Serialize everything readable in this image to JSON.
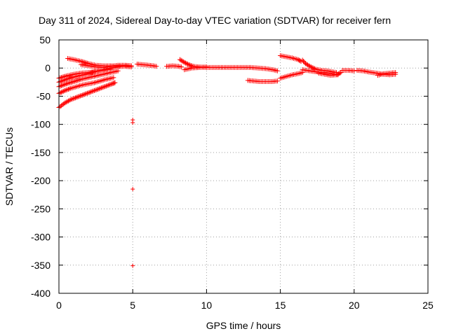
{
  "chart_data": {
    "type": "scatter",
    "title": "Day 311 of 2024, Sidereal Day-to-day VTEC variation (SDTVAR) for receiver fern",
    "xlabel": "GPS time / hours",
    "ylabel": "SDTVAR / TECUs",
    "xlim": [
      0,
      25
    ],
    "ylim": [
      -400,
      50
    ],
    "xticks": [
      0,
      5,
      10,
      15,
      20,
      25
    ],
    "yticks": [
      50,
      0,
      -50,
      -100,
      -150,
      -200,
      -250,
      -300,
      -350,
      -400
    ],
    "grid": true,
    "marker": "+",
    "color": "#ff0000",
    "series": [
      {
        "tracks": [
          [
            [
              0.0,
              -70
            ],
            [
              0.4,
              -62
            ],
            [
              0.8,
              -56
            ],
            [
              1.2,
              -52
            ],
            [
              1.6,
              -48
            ],
            [
              2.0,
              -44
            ],
            [
              2.4,
              -40
            ],
            [
              2.8,
              -36
            ],
            [
              3.2,
              -32
            ],
            [
              3.6,
              -28
            ],
            [
              3.8,
              -26
            ]
          ],
          [
            [
              0.0,
              -45
            ],
            [
              0.4,
              -40
            ],
            [
              0.8,
              -36
            ],
            [
              1.2,
              -33
            ],
            [
              1.6,
              -30
            ],
            [
              2.0,
              -28
            ],
            [
              2.4,
              -26
            ],
            [
              2.8,
              -23
            ],
            [
              3.2,
              -20
            ],
            [
              3.7,
              -17
            ]
          ],
          [
            [
              0.0,
              -33
            ],
            [
              0.5,
              -28
            ],
            [
              1.0,
              -24
            ],
            [
              1.5,
              -20
            ],
            [
              2.0,
              -17
            ],
            [
              2.5,
              -14
            ],
            [
              3.0,
              -11
            ],
            [
              3.5,
              -8
            ],
            [
              4.0,
              -5
            ]
          ],
          [
            [
              0.0,
              -25
            ],
            [
              0.5,
              -20
            ],
            [
              1.0,
              -16
            ],
            [
              1.5,
              -13
            ],
            [
              2.0,
              -10
            ],
            [
              2.5,
              -6
            ],
            [
              3.0,
              -3
            ],
            [
              3.5,
              0
            ],
            [
              4.0,
              2
            ],
            [
              4.5,
              4
            ],
            [
              4.9,
              4
            ]
          ],
          [
            [
              0.0,
              -18
            ],
            [
              0.5,
              -14
            ],
            [
              1.0,
              -11
            ],
            [
              1.5,
              -9
            ],
            [
              2.0,
              -8
            ],
            [
              2.5,
              -6
            ],
            [
              3.0,
              -4
            ],
            [
              3.5,
              -2
            ]
          ],
          [
            [
              0.6,
              17
            ],
            [
              1.0,
              15
            ],
            [
              1.5,
              12
            ],
            [
              2.0,
              8
            ],
            [
              2.5,
              5
            ],
            [
              3.0,
              4
            ],
            [
              3.5,
              4
            ],
            [
              4.0,
              3
            ],
            [
              4.5,
              3
            ],
            [
              4.9,
              2
            ]
          ],
          [
            [
              1.5,
              6
            ],
            [
              2.0,
              4
            ],
            [
              2.5,
              2
            ],
            [
              3.0,
              1
            ],
            [
              3.5,
              3
            ],
            [
              4.0,
              5
            ],
            [
              4.5,
              5
            ],
            [
              4.9,
              4
            ]
          ],
          [
            [
              5.3,
              7
            ],
            [
              5.7,
              6
            ],
            [
              6.1,
              5
            ],
            [
              6.4,
              4
            ],
            [
              6.6,
              3
            ]
          ],
          [
            [
              7.3,
              3
            ],
            [
              7.7,
              4
            ],
            [
              8.1,
              3
            ],
            [
              8.3,
              2
            ]
          ],
          [
            [
              8.2,
              15
            ],
            [
              8.5,
              10
            ],
            [
              8.8,
              6
            ],
            [
              9.1,
              3
            ],
            [
              9.5,
              2
            ],
            [
              10.0,
              1
            ],
            [
              10.5,
              1
            ],
            [
              11.0,
              1
            ],
            [
              11.5,
              1
            ],
            [
              12.0,
              1
            ],
            [
              12.5,
              1
            ],
            [
              13.0,
              1
            ],
            [
              13.5,
              0
            ],
            [
              14.0,
              -1
            ],
            [
              14.5,
              -3
            ],
            [
              14.8,
              -5
            ]
          ],
          [
            [
              8.5,
              -3
            ],
            [
              9.0,
              0
            ],
            [
              9.5,
              1
            ],
            [
              10.0,
              2
            ]
          ],
          [
            [
              12.8,
              -22
            ],
            [
              13.2,
              -23
            ],
            [
              13.6,
              -24
            ],
            [
              14.0,
              -24
            ],
            [
              14.4,
              -24
            ],
            [
              14.8,
              -23
            ]
          ],
          [
            [
              15.0,
              22
            ],
            [
              15.4,
              20
            ],
            [
              15.8,
              18
            ],
            [
              16.2,
              15
            ],
            [
              16.4,
              12
            ]
          ],
          [
            [
              15.0,
              -18
            ],
            [
              15.4,
              -15
            ],
            [
              15.8,
              -12
            ],
            [
              16.2,
              -10
            ],
            [
              16.5,
              -8
            ]
          ],
          [
            [
              16.5,
              14
            ],
            [
              16.7,
              8
            ],
            [
              17.0,
              3
            ],
            [
              17.4,
              -2
            ],
            [
              17.8,
              -4
            ],
            [
              18.2,
              -5
            ],
            [
              18.6,
              -7
            ],
            [
              18.8,
              -8
            ]
          ],
          [
            [
              16.5,
              -3
            ],
            [
              17.0,
              -5
            ],
            [
              17.5,
              -7
            ],
            [
              18.0,
              -8
            ],
            [
              18.5,
              -10
            ],
            [
              18.9,
              -12
            ]
          ],
          [
            [
              17.6,
              -9
            ],
            [
              18.0,
              -11
            ],
            [
              18.4,
              -13
            ],
            [
              18.8,
              -12
            ],
            [
              19.1,
              -8
            ]
          ],
          [
            [
              19.2,
              -4
            ],
            [
              19.6,
              -4
            ],
            [
              20.0,
              -5
            ]
          ],
          [
            [
              20.2,
              -4
            ],
            [
              20.6,
              -5
            ],
            [
              21.0,
              -7
            ],
            [
              21.5,
              -9
            ],
            [
              22.0,
              -11
            ],
            [
              22.4,
              -12
            ],
            [
              22.8,
              -11
            ]
          ],
          [
            [
              21.6,
              -13
            ],
            [
              22.0,
              -10
            ],
            [
              22.4,
              -9
            ],
            [
              22.8,
              -8
            ]
          ]
        ]
      },
      {
        "points": [
          [
            5.0,
            -92
          ],
          [
            5.0,
            -97
          ],
          [
            5.0,
            -215
          ],
          [
            5.0,
            -351
          ]
        ]
      }
    ]
  }
}
